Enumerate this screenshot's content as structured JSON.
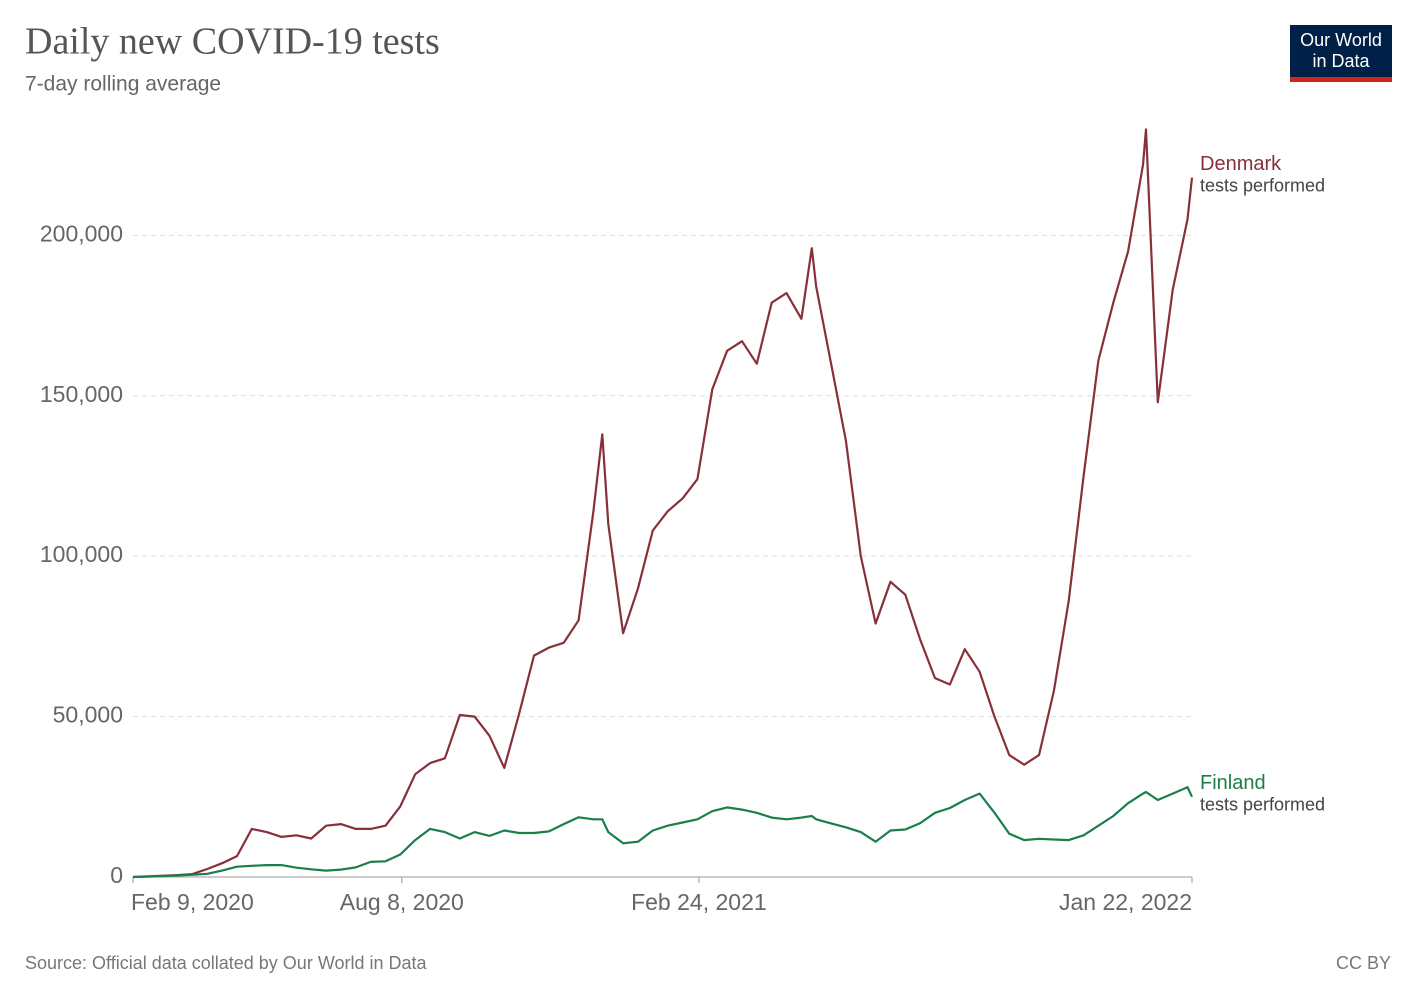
{
  "chart_data": {
    "type": "line",
    "title": "Daily new COVID-19 tests",
    "subtitle": "7-day rolling average",
    "logo": [
      "Our World",
      "in Data"
    ],
    "source": "Source: Official data collated by Our World in Data",
    "license": "CC BY",
    "x": [
      "2020-02-09",
      "2020-02-19",
      "2020-02-29",
      "2020-03-10",
      "2020-03-20",
      "2020-03-30",
      "2020-04-09",
      "2020-04-19",
      "2020-04-29",
      "2020-05-09",
      "2020-05-19",
      "2020-05-29",
      "2020-06-08",
      "2020-06-18",
      "2020-06-28",
      "2020-07-08",
      "2020-07-18",
      "2020-07-28",
      "2020-08-07",
      "2020-08-17",
      "2020-08-27",
      "2020-09-06",
      "2020-09-16",
      "2020-09-26",
      "2020-10-06",
      "2020-10-16",
      "2020-10-26",
      "2020-11-05",
      "2020-11-15",
      "2020-11-25",
      "2020-12-05",
      "2020-12-15",
      "2020-12-21",
      "2020-12-25",
      "2021-01-04",
      "2021-01-14",
      "2021-01-24",
      "2021-02-03",
      "2021-02-13",
      "2021-02-23",
      "2021-03-05",
      "2021-03-15",
      "2021-03-25",
      "2021-04-04",
      "2021-04-14",
      "2021-04-24",
      "2021-05-04",
      "2021-05-11",
      "2021-05-14",
      "2021-05-24",
      "2021-06-03",
      "2021-06-13",
      "2021-06-23",
      "2021-07-03",
      "2021-07-13",
      "2021-07-23",
      "2021-08-02",
      "2021-08-12",
      "2021-08-22",
      "2021-09-01",
      "2021-09-11",
      "2021-09-21",
      "2021-10-01",
      "2021-10-11",
      "2021-10-21",
      "2021-10-31",
      "2021-11-10",
      "2021-11-20",
      "2021-11-30",
      "2021-12-10",
      "2021-12-20",
      "2021-12-22",
      "2021-12-30",
      "2022-01-09",
      "2022-01-19",
      "2022-01-22"
    ],
    "series": [
      {
        "name": "Denmark",
        "annotation": "tests performed",
        "color": "#883039",
        "values": [
          0,
          200,
          400,
          600,
          900,
          2500,
          4300,
          6500,
          15000,
          14000,
          12500,
          13000,
          12000,
          16000,
          16500,
          15000,
          15000,
          16000,
          22000,
          32000,
          35500,
          37000,
          50500,
          50000,
          44000,
          34000,
          51000,
          69000,
          71500,
          73000,
          80000,
          114000,
          138000,
          110000,
          76000,
          90000,
          108000,
          114000,
          118000,
          124000,
          152000,
          164000,
          167000,
          160000,
          179000,
          182000,
          174000,
          196000,
          184000,
          160000,
          136000,
          100000,
          79000,
          92000,
          88000,
          74000,
          62000,
          60000,
          71000,
          64000,
          50000,
          38000,
          35000,
          38000,
          58000,
          86000,
          125000,
          161000,
          179000,
          195000,
          222000,
          233000,
          148000,
          183000,
          205000,
          218000
        ]
      },
      {
        "name": "Finland",
        "annotation": "tests performed",
        "color": "#1a7f4b",
        "values": [
          0,
          100,
          300,
          500,
          700,
          1000,
          2000,
          3200,
          3500,
          3700,
          3700,
          2900,
          2400,
          2000,
          2300,
          3000,
          4700,
          4900,
          7000,
          11500,
          15000,
          14000,
          12000,
          14000,
          12800,
          14500,
          13700,
          13700,
          14200,
          16500,
          18600,
          18000,
          18000,
          14000,
          10500,
          11000,
          14500,
          16000,
          17000,
          18000,
          20500,
          21700,
          21000,
          20000,
          18500,
          18000,
          18500,
          19000,
          18000,
          16700,
          15500,
          14000,
          11000,
          14500,
          14800,
          16800,
          20000,
          21500,
          24000,
          26000,
          20000,
          13500,
          11500,
          11900,
          11700,
          11500,
          13000,
          16000,
          19000,
          23000,
          26000,
          26500,
          24000,
          26000,
          28000,
          25000
        ]
      }
    ],
    "xlim": [
      "2020-02-09",
      "2022-01-22"
    ],
    "xticks": [
      {
        "value": "2020-02-09",
        "label": "Feb 9, 2020"
      },
      {
        "value": "2020-08-08",
        "label": "Aug 8, 2020"
      },
      {
        "value": "2021-02-24",
        "label": "Feb 24, 2021"
      },
      {
        "value": "2022-01-22",
        "label": "Jan 22, 2022"
      }
    ],
    "ylim": [
      0,
      240000
    ],
    "yticks": [
      0,
      {
        "value": 50000,
        "label": "50,000"
      },
      {
        "value": 100000,
        "label": "100,000"
      },
      {
        "value": 150000,
        "label": "150,000"
      },
      {
        "value": 200000,
        "label": "200,000"
      }
    ],
    "grid": true
  }
}
